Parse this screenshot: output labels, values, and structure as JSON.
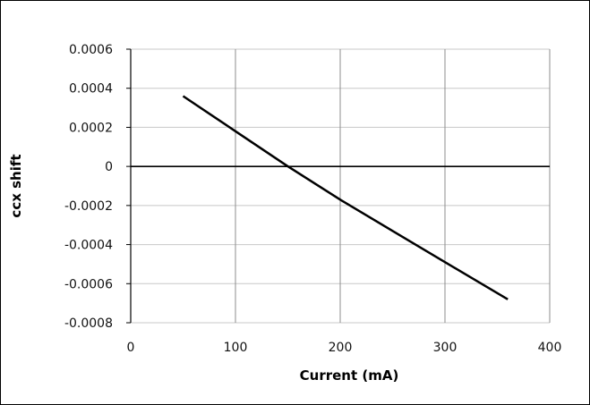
{
  "chart_data": {
    "type": "line",
    "title": "",
    "xlabel": "Current (mA)",
    "ylabel": "ccx shift",
    "xlim": [
      0,
      400
    ],
    "ylim": [
      -0.0008,
      0.0006
    ],
    "x_ticks": [
      0,
      100,
      200,
      300,
      400
    ],
    "y_ticks": [
      0.0006,
      0.0004,
      0.0002,
      0,
      -0.0002,
      -0.0004,
      -0.0006,
      -0.0008
    ],
    "x_tick_labels": [
      "0",
      "100",
      "200",
      "300",
      "400"
    ],
    "y_tick_labels": [
      "0.0006",
      "0.0004",
      "0.0002",
      "0",
      "-0.0002",
      "-0.0004",
      "-0.0006",
      "-0.0008"
    ],
    "grid": true,
    "legend": "none",
    "series": [
      {
        "x": [
          50,
          100,
          150,
          200,
          250,
          300,
          360
        ],
        "y": [
          0.00036,
          0.00018,
          0.0,
          -0.00017,
          -0.00033,
          -0.00049,
          -0.00068
        ],
        "color": "#000000"
      }
    ],
    "colors": {
      "grid": "#c8c8c8",
      "vgrid": "#8c8c8c",
      "zero_line": "#000000",
      "line": "#000000"
    }
  }
}
